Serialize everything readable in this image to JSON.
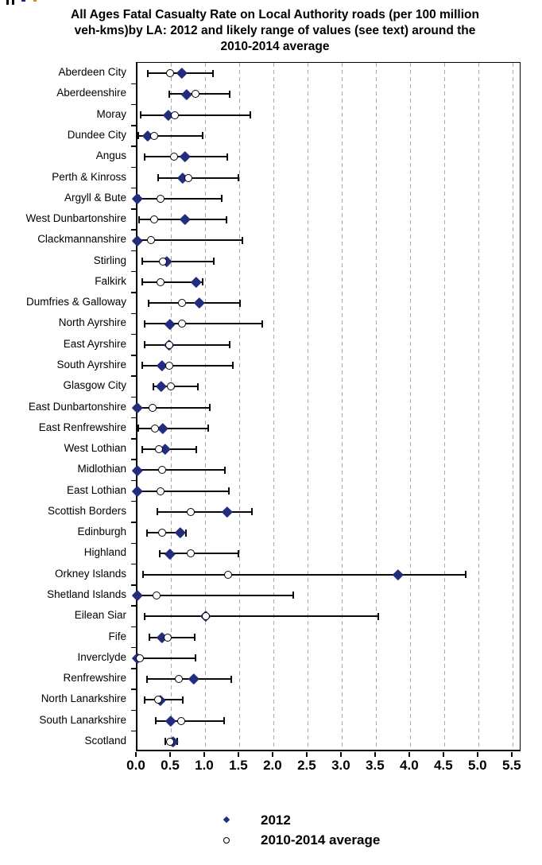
{
  "chart_data": {
    "type": "scatter",
    "subtype": "dot-and-range",
    "title": "All Ages Fatal Casualty Rate on Local Authority roads (per 100 million veh-kms)by LA: 2012 and likely range of values (see text) around the 2010-2014 average",
    "title_lines": [
      "All Ages Fatal Casualty Rate on Local Authority roads (per 100 million",
      "veh-kms)by LA: 2012 and likely range of values (see text) around the",
      "2010-2014 average"
    ],
    "categories": [
      "Aberdeen City",
      "Aberdeenshire",
      "Moray",
      "Dundee City",
      "Angus",
      "Perth & Kinross",
      "Argyll & Bute",
      "West Dunbartonshire",
      "Clackmannanshire",
      "Stirling",
      "Falkirk",
      "Dumfries & Galloway",
      "North Ayrshire",
      "East Ayrshire",
      "South Ayrshire",
      "Glasgow City",
      "East Dunbartonshire",
      "East Renfrewshire",
      "West Lothian",
      "Midlothian",
      "East Lothian",
      "Scottish Borders",
      "Edinburgh",
      "Highland",
      "Orkney Islands",
      "Shetland Islands",
      "Eilean Siar",
      "Fife",
      "Inverclyde",
      "Renfrewshire",
      "North Lanarkshire",
      "South Lanarkshire",
      "Scotland"
    ],
    "series": [
      {
        "name": "2012",
        "marker": "filled-diamond",
        "color": "#222E7D",
        "values": [
          0.65,
          0.72,
          0.45,
          0.15,
          0.69,
          0.66,
          0.0,
          0.7,
          0.0,
          0.43,
          0.86,
          0.9,
          0.47,
          0.46,
          0.36,
          0.35,
          0.0,
          0.37,
          0.4,
          0.0,
          0.0,
          1.31,
          0.62,
          0.47,
          3.81,
          0.0,
          1.0,
          0.36,
          0.0,
          0.82,
          0.34,
          0.49,
          0.52
        ]
      },
      {
        "name": "2010-2014 average",
        "marker": "open-circle",
        "color": "#000000",
        "values": [
          0.48,
          0.85,
          0.55,
          0.24,
          0.53,
          0.74,
          0.34,
          0.24,
          0.2,
          0.37,
          0.34,
          0.65,
          0.65,
          0.46,
          0.46,
          0.49,
          0.22,
          0.26,
          0.31,
          0.36,
          0.34,
          0.78,
          0.36,
          0.78,
          1.33,
          0.28,
          1.0,
          0.44,
          0.04,
          0.6,
          0.3,
          0.64,
          0.48
        ]
      },
      {
        "name": "likely range",
        "marker": "error-bar",
        "color": "#000000",
        "low": [
          0.15,
          0.47,
          0.05,
          0.01,
          0.11,
          0.3,
          0.02,
          0.02,
          0.0,
          0.07,
          0.07,
          0.16,
          0.1,
          0.1,
          0.07,
          0.23,
          0.0,
          0.01,
          0.07,
          0.0,
          0.0,
          0.29,
          0.14,
          0.33,
          0.08,
          0.0,
          0.1,
          0.18,
          0.0,
          0.14,
          0.1,
          0.27,
          0.41
        ],
        "high": [
          1.1,
          1.35,
          1.65,
          0.95,
          1.32,
          1.48,
          1.23,
          1.3,
          1.53,
          1.12,
          0.95,
          1.5,
          1.83,
          1.35,
          1.4,
          0.88,
          1.06,
          1.03,
          0.86,
          1.28,
          1.34,
          1.68,
          0.71,
          1.48,
          4.8,
          2.28,
          3.52,
          0.84,
          0.85,
          1.37,
          0.66,
          1.27,
          0.58
        ]
      }
    ],
    "xlabel": "",
    "ylabel": "",
    "xlim": [
      0.0,
      5.63
    ],
    "xticks": [
      "0.0",
      "0.5",
      "1.0",
      "1.5",
      "2.0",
      "2.5",
      "3.0",
      "3.5",
      "4.0",
      "4.5",
      "5.0",
      "5.5"
    ],
    "grid": "vertical-dashed",
    "legend_position": "bottom-center",
    "colors": {
      "marker_diamond": "#222E7D",
      "range_line": "#0a0a0a",
      "grid_line": "#a9a9a9",
      "text": "#000000",
      "background": "#ffffff"
    }
  }
}
